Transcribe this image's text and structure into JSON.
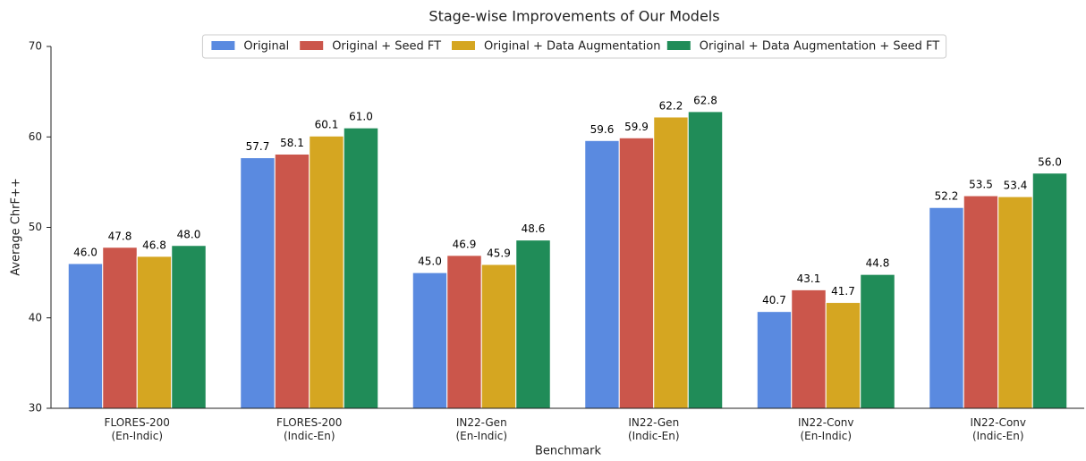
{
  "chart_data": {
    "type": "bar",
    "title": "Stage-wise Improvements of Our Models",
    "xlabel": "Benchmark",
    "ylabel": "Average ChrF++",
    "categories": [
      "FLORES-200\n(En-Indic)",
      "FLORES-200\n(Indic-En)",
      "IN22-Gen\n(En-Indic)",
      "IN22-Gen\n(Indic-En)",
      "IN22-Conv\n(En-Indic)",
      "IN22-Conv\n(Indic-En)"
    ],
    "series": [
      {
        "name": "Original",
        "color": "#5a8ae0",
        "values": [
          46.0,
          57.7,
          45.0,
          59.6,
          40.7,
          52.2
        ],
        "value_labels": [
          "46.0",
          "57.7",
          "45.0",
          "59.6",
          "40.7",
          "52.2"
        ]
      },
      {
        "name": "Original + Seed FT",
        "color": "#cb564b",
        "values": [
          47.8,
          58.1,
          46.9,
          59.9,
          43.1,
          53.5
        ],
        "value_labels": [
          "47.8",
          "58.1",
          "46.9",
          "59.9",
          "43.1",
          "53.5"
        ]
      },
      {
        "name": "Original + Data Augmentation",
        "color": "#d5a621",
        "values": [
          46.8,
          60.1,
          45.9,
          62.2,
          41.7,
          53.4
        ],
        "value_labels": [
          "46.8",
          "60.1",
          "45.9",
          "62.2",
          "41.7",
          "53.4"
        ]
      },
      {
        "name": "Original + Data Augmentation + Seed FT",
        "color": "#208c58",
        "values": [
          48.0,
          61.0,
          48.6,
          62.8,
          44.8,
          56.0
        ],
        "value_labels": [
          "48.0",
          "61.0",
          "48.6",
          "62.8",
          "44.8",
          "56.0"
        ]
      }
    ],
    "ylim": [
      30,
      70
    ],
    "yticks": [
      30,
      40,
      50,
      60,
      70
    ],
    "grid": false,
    "legend": "upper center"
  }
}
